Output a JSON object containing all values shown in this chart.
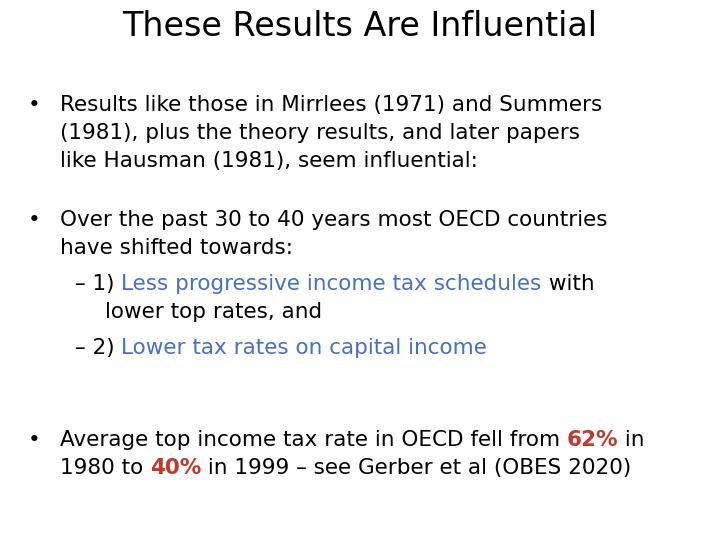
{
  "title": "These Results Are Influential",
  "background_color": "#ffffff",
  "title_color": "#000000",
  "title_fontsize": 24,
  "body_fontsize": 15.5,
  "black": "#000000",
  "blue": "#4472C4",
  "red": "#C0392B",
  "bullet1_line1": "Results like those in Mirrlees (1971) and Summers",
  "bullet1_line2": "(1981), plus the theory results, and later papers",
  "bullet1_line3": "like Hausman (1981), seem influential:",
  "bullet2_line1": "Over the past 30 to 40 years most OECD countries",
  "bullet2_line2": "have shifted towards:",
  "sub1_prefix": "– 1) ",
  "sub1_blue": "Less progressive income tax schedules",
  "sub1_suffix": " with",
  "sub1_line2": "lower top rates, and",
  "sub2_prefix": "– 2) ",
  "sub2_blue": "Lower tax rates on capital income",
  "bullet3_line1_pre": "Average top income tax rate in OECD fell from ",
  "bullet3_62": "62%",
  "bullet3_line1_post": " in",
  "bullet3_line2_pre": "1980 to ",
  "bullet3_40": "40%",
  "bullet3_line2_post": " in 1999 – see Gerber et al (OBES 2020)"
}
